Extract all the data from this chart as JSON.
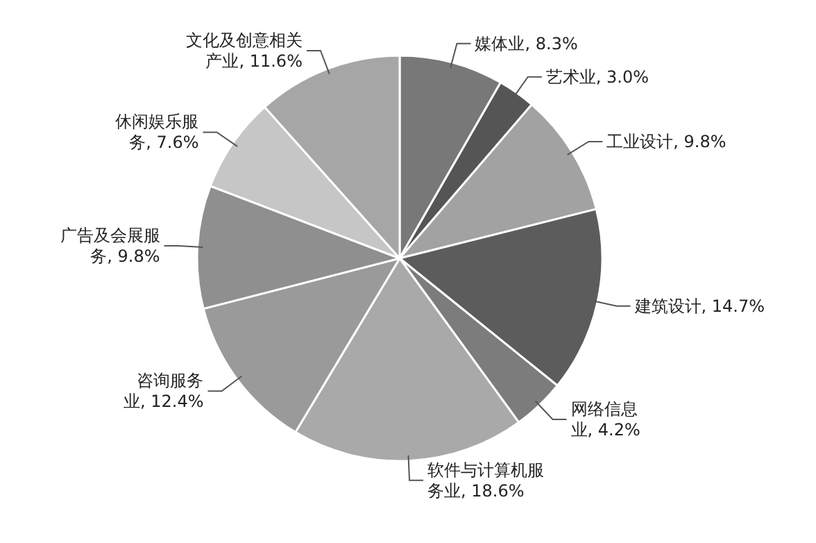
{
  "chart_data": {
    "type": "pie",
    "categories": [
      "媒体业",
      "艺术业",
      "工业设计",
      "建筑设计",
      "网络信息业",
      "软件与计算机服务业",
      "咨询服务业",
      "广告及会展服务",
      "休闲娱乐服务",
      "文化及创意相关产业"
    ],
    "values": [
      8.3,
      3.0,
      9.8,
      14.7,
      4.2,
      18.6,
      12.4,
      9.8,
      7.6,
      11.6
    ],
    "value_labels": [
      "8.3%",
      "3.0%",
      "9.8%",
      "14.7%",
      "4.2%",
      "18.6%",
      "12.4%",
      "9.8%",
      "7.6%",
      "11.6%"
    ],
    "colors": [
      "#787878",
      "#555555",
      "#a2a2a2",
      "#5c5c5c",
      "#7c7c7c",
      "#a9a9a9",
      "#9a9a9a",
      "#8f8f8f",
      "#c6c6c6",
      "#a6a6a6"
    ]
  }
}
